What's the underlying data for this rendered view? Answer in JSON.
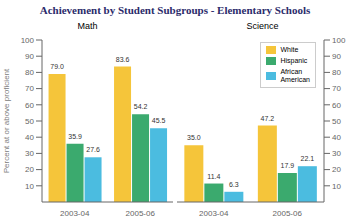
{
  "title": "Achievement by Student Subgroups - Elementary Schools",
  "chart_data": [
    {
      "type": "bar",
      "title": "Math",
      "ylabel": "Percent at or above proficient",
      "categories": [
        "2003-04",
        "2005-06"
      ],
      "series": [
        {
          "name": "White",
          "color": "#F5C53A",
          "values": [
            79.0,
            83.6
          ],
          "value_labels": [
            "79.0",
            "83.6"
          ]
        },
        {
          "name": "Hispanic",
          "color": "#3BAA6E",
          "values": [
            35.9,
            54.2
          ],
          "value_labels": [
            "35.9",
            "54.2"
          ]
        },
        {
          "name": "African\nAmerican",
          "color": "#4BBCE0",
          "values": [
            27.6,
            45.5
          ],
          "value_labels": [
            "27.6",
            "45.5"
          ]
        }
      ],
      "ylim": [
        0,
        100
      ],
      "yticks": [
        10,
        20,
        30,
        40,
        50,
        60,
        70,
        80,
        90,
        100
      ],
      "grid": false,
      "data_labels": true
    },
    {
      "type": "bar",
      "title": "Science",
      "categories": [
        "2003-04",
        "2005-06"
      ],
      "series": [
        {
          "name": "White",
          "color": "#F5C53A",
          "values": [
            35.0,
            47.2
          ],
          "value_labels": [
            "35.0",
            "47.2"
          ]
        },
        {
          "name": "Hispanic",
          "color": "#3BAA6E",
          "values": [
            11.4,
            17.9
          ],
          "value_labels": [
            "11.4",
            "17.9"
          ]
        },
        {
          "name": "African\nAmerican",
          "color": "#4BBCE0",
          "values": [
            6.3,
            22.1
          ],
          "value_labels": [
            "6.3",
            "22.1"
          ]
        }
      ],
      "ylim": [
        0,
        100
      ],
      "yticks": [
        10,
        20,
        30,
        40,
        50,
        60,
        70,
        80,
        90,
        100
      ],
      "grid": false,
      "data_labels": true,
      "legend": "upper right"
    }
  ]
}
